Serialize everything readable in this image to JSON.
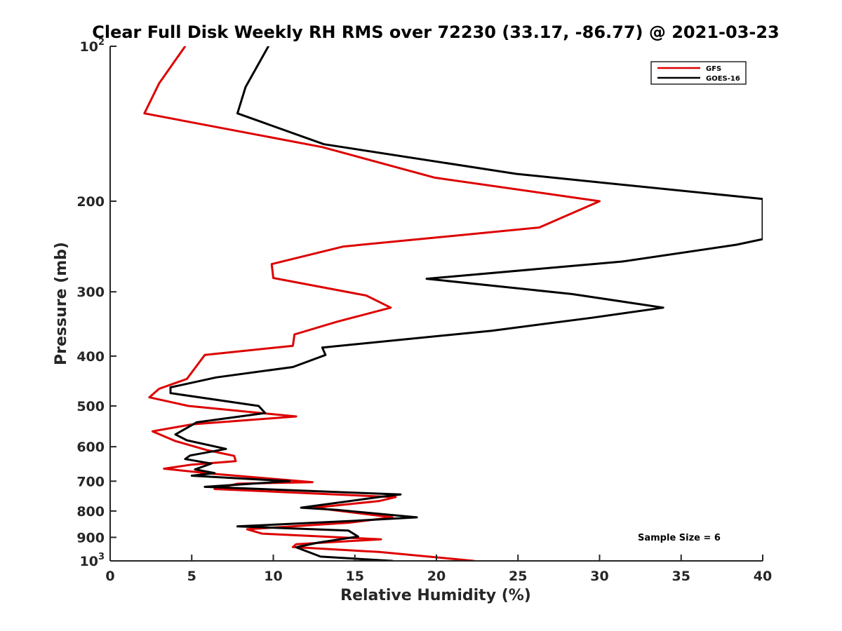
{
  "chart_data": {
    "type": "line",
    "title": "Clear Full Disk Weekly RH RMS over 72230 (33.17, -86.77) @ 2021-03-23",
    "xlabel": "Relative Humidity (%)",
    "ylabel": "Pressure (mb)",
    "xlim": [
      0,
      40
    ],
    "ylim": [
      100,
      1000
    ],
    "y_scale": "log",
    "y_reversed": true,
    "x_ticks": [
      0,
      5,
      10,
      15,
      20,
      25,
      30,
      35,
      40
    ],
    "x_tick_labels": [
      "0",
      "5",
      "10",
      "15",
      "20",
      "25",
      "30",
      "35",
      "40"
    ],
    "y_ticks": [
      100,
      200,
      300,
      400,
      500,
      600,
      700,
      800,
      900,
      1000
    ],
    "y_tick_labels": [
      {
        "base": "10",
        "exp": "2"
      },
      {
        "base": "200"
      },
      {
        "base": "300"
      },
      {
        "base": "400"
      },
      {
        "base": "500"
      },
      {
        "base": "600"
      },
      {
        "base": "700"
      },
      {
        "base": "800"
      },
      {
        "base": "900"
      },
      {
        "base": "10",
        "exp": "3"
      }
    ],
    "legend_position": "top-right",
    "annotation": "Sample Size = 6",
    "series": [
      {
        "name": "GFS",
        "color": "#dd0000",
        "points": [
          [
            4.6,
            100
          ],
          [
            3.0,
            118
          ],
          [
            2.1,
            135
          ],
          [
            13.0,
            157
          ],
          [
            19.9,
            180
          ],
          [
            30.0,
            200
          ],
          [
            26.3,
            225
          ],
          [
            14.3,
            245
          ],
          [
            9.9,
            265
          ],
          [
            10.0,
            282
          ],
          [
            15.7,
            305
          ],
          [
            17.2,
            322
          ],
          [
            13.9,
            343
          ],
          [
            11.3,
            363
          ],
          [
            11.2,
            382
          ],
          [
            5.8,
            398
          ],
          [
            5.3,
            418
          ],
          [
            4.7,
            443
          ],
          [
            3.0,
            463
          ],
          [
            2.4,
            481
          ],
          [
            4.8,
            500
          ],
          [
            11.4,
            524
          ],
          [
            5.0,
            543
          ],
          [
            2.6,
            560
          ],
          [
            4.0,
            585
          ],
          [
            6.0,
            610
          ],
          [
            7.6,
            625
          ],
          [
            7.7,
            640
          ],
          [
            5.0,
            650
          ],
          [
            3.3,
            662
          ],
          [
            6.5,
            678
          ],
          [
            12.4,
            703
          ],
          [
            7.8,
            708
          ],
          [
            6.4,
            725
          ],
          [
            17.5,
            752
          ],
          [
            16.5,
            765
          ],
          [
            12.5,
            788
          ],
          [
            17.3,
            823
          ],
          [
            14.6,
            843
          ],
          [
            8.4,
            868
          ],
          [
            9.3,
            885
          ],
          [
            16.6,
            908
          ],
          [
            11.4,
            928
          ],
          [
            11.2,
            940
          ],
          [
            16.5,
            961
          ],
          [
            22.3,
            1000
          ]
        ]
      },
      {
        "name": "GOES-16",
        "color": "#000000",
        "points": [
          [
            9.7,
            100
          ],
          [
            8.3,
            120
          ],
          [
            7.8,
            135
          ],
          [
            13.1,
            155
          ],
          [
            24.9,
            177
          ],
          [
            40.0,
            198
          ],
          [
            40.0,
            237
          ],
          [
            38.4,
            243
          ],
          [
            31.4,
            262
          ],
          [
            19.4,
            283
          ],
          [
            28.3,
            303
          ],
          [
            33.9,
            322
          ],
          [
            29.5,
            337
          ],
          [
            23.4,
            357
          ],
          [
            13.0,
            385
          ],
          [
            13.2,
            398
          ],
          [
            11.2,
            420
          ],
          [
            6.5,
            440
          ],
          [
            3.7,
            460
          ],
          [
            3.7,
            472
          ],
          [
            9.1,
            500
          ],
          [
            9.5,
            516
          ],
          [
            5.3,
            538
          ],
          [
            4.0,
            568
          ],
          [
            4.7,
            583
          ],
          [
            7.1,
            606
          ],
          [
            4.9,
            624
          ],
          [
            4.6,
            634
          ],
          [
            6.2,
            647
          ],
          [
            5.2,
            664
          ],
          [
            6.4,
            675
          ],
          [
            5.0,
            683
          ],
          [
            11.0,
            700
          ],
          [
            5.8,
            718
          ],
          [
            17.8,
            743
          ],
          [
            16.7,
            750
          ],
          [
            11.7,
            788
          ],
          [
            13.9,
            796
          ],
          [
            18.8,
            823
          ],
          [
            14.6,
            837
          ],
          [
            7.8,
            857
          ],
          [
            14.6,
            873
          ],
          [
            15.2,
            897
          ],
          [
            12.7,
            922
          ],
          [
            11.4,
            941
          ],
          [
            12.9,
            981
          ],
          [
            17.3,
            1000
          ]
        ]
      }
    ]
  }
}
